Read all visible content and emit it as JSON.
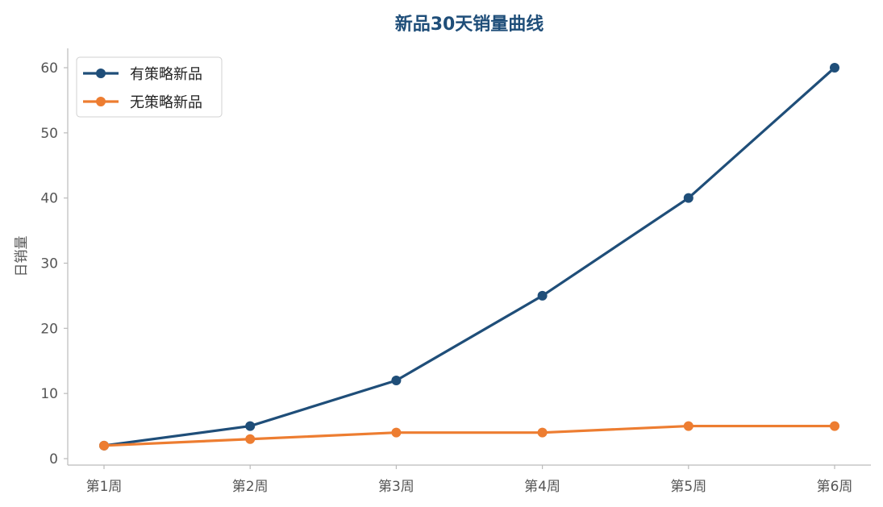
{
  "chart_data": {
    "type": "line",
    "title": "新品30天销量曲线",
    "xlabel": "",
    "ylabel": "日销量",
    "categories": [
      "第1周",
      "第2周",
      "第3周",
      "第4周",
      "第5周",
      "第6周"
    ],
    "series": [
      {
        "name": "有策略新品",
        "color": "#1f4e79",
        "values": [
          2,
          5,
          12,
          25,
          40,
          60
        ]
      },
      {
        "name": "无策略新品",
        "color": "#ed7d31",
        "values": [
          2,
          3,
          4,
          4,
          5,
          5
        ]
      }
    ],
    "ylim": [
      0,
      60
    ],
    "yticks": [
      0,
      10,
      20,
      30,
      40,
      50,
      60
    ],
    "grid": false,
    "legend_position": "top-left",
    "colors": {
      "title": "#1f4e79",
      "axis": "#bbbbbb",
      "tick_text": "#555555"
    }
  }
}
